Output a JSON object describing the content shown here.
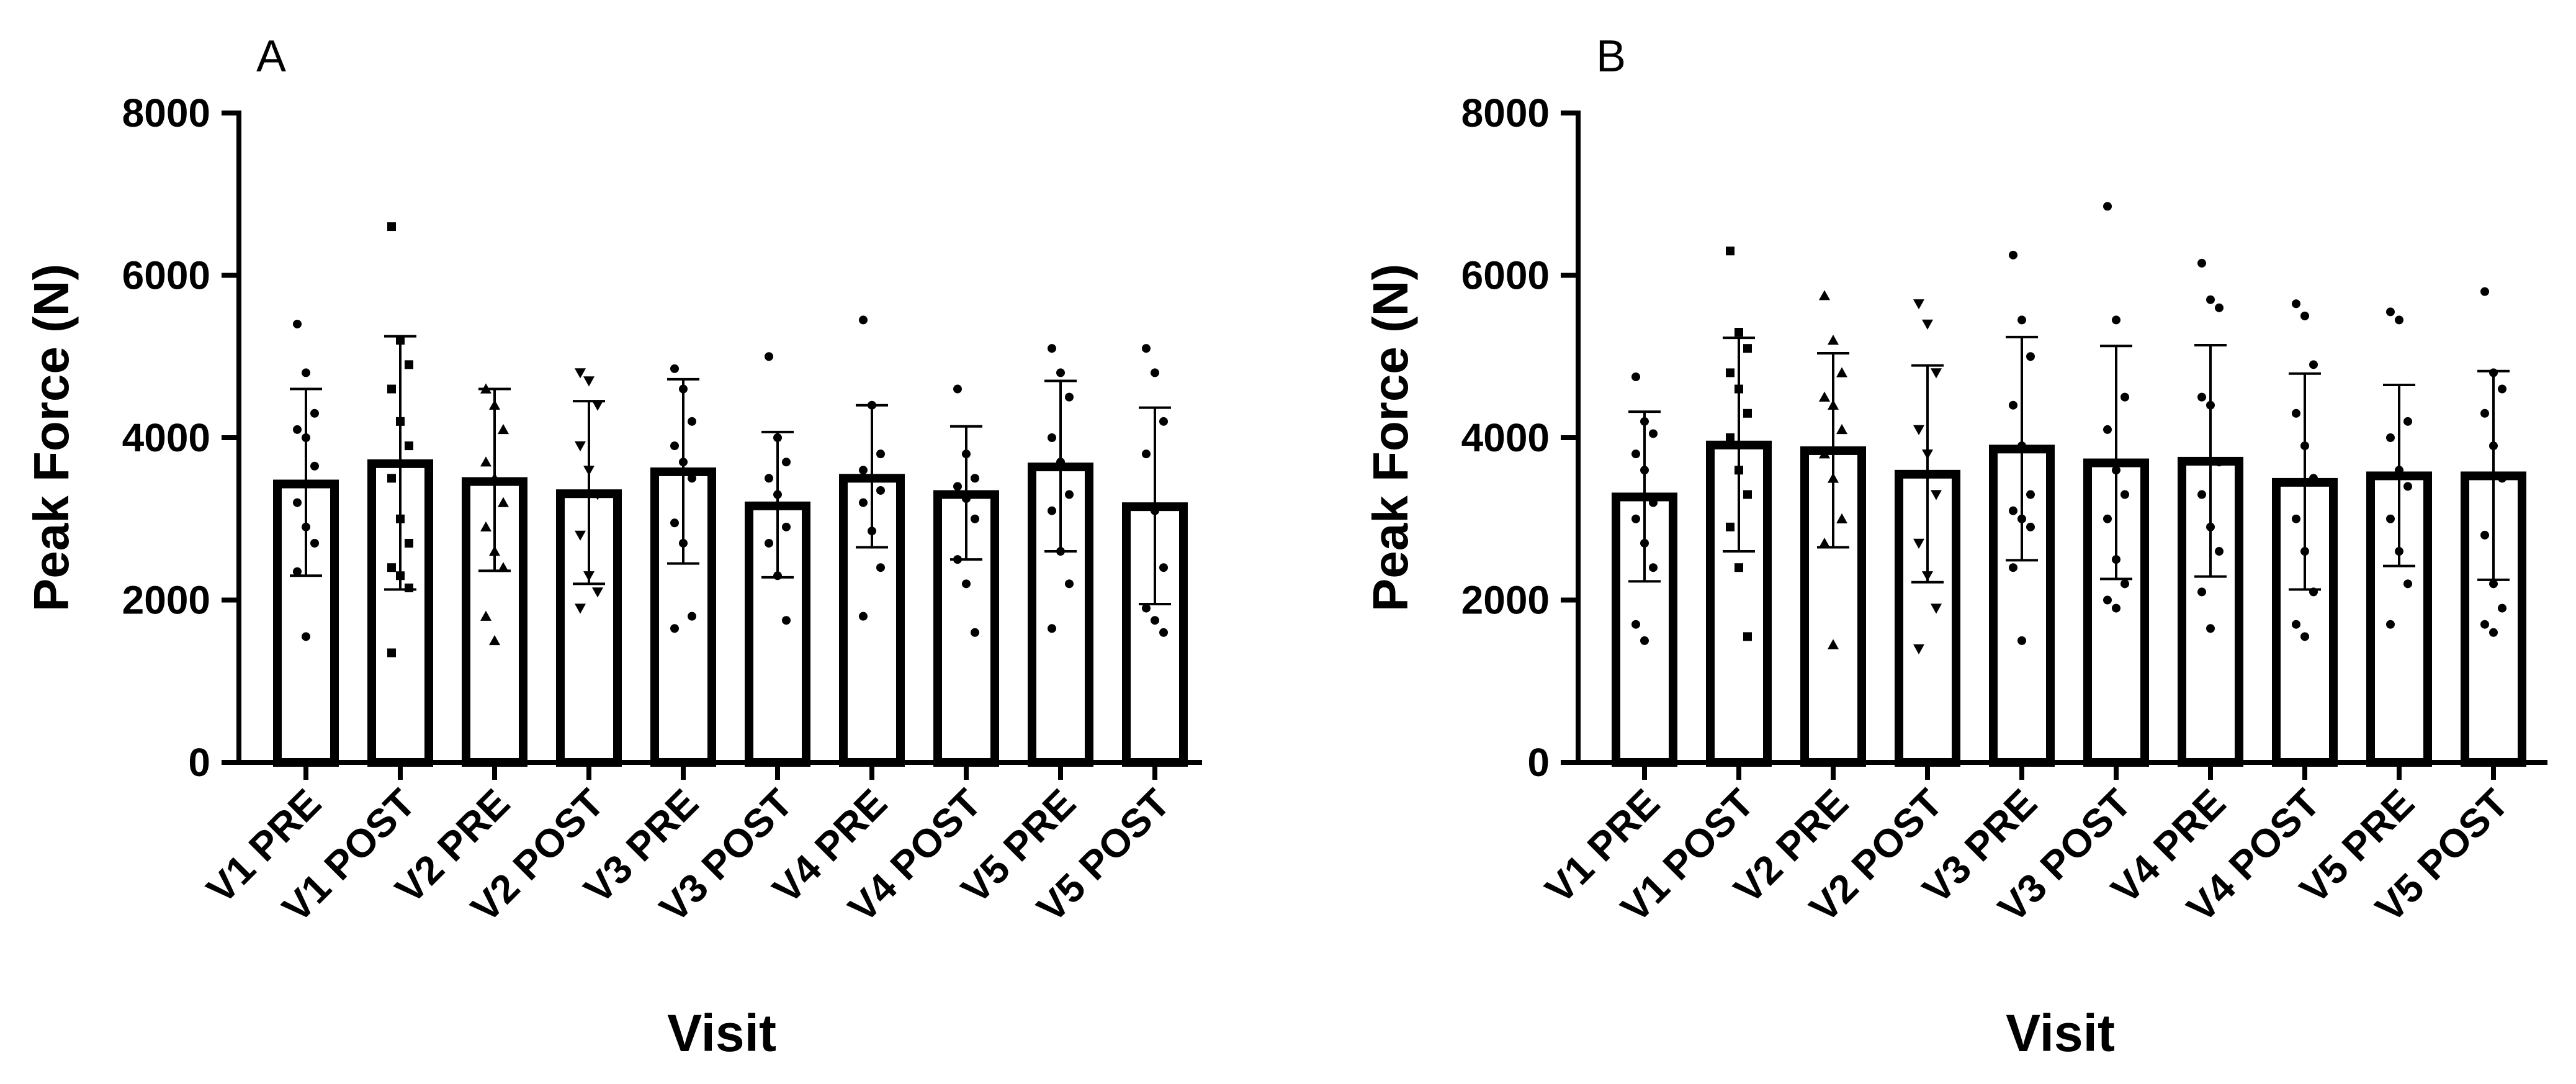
{
  "chart_data": [
    {
      "type": "bar",
      "panel": "A",
      "xlabel": "Visit",
      "ylabel": "Peak Force (N)",
      "ylim": [
        0,
        8000
      ],
      "yticks": [
        0,
        2000,
        4000,
        6000,
        8000
      ],
      "categories": [
        "V1 PRE",
        "V1 POST",
        "V2 PRE",
        "V2 POST",
        "V3 PRE",
        "V3 POST",
        "V4 PRE",
        "V4 POST",
        "V5 PRE",
        "V5 POST"
      ],
      "values": [
        3430,
        3680,
        3460,
        3310,
        3580,
        3160,
        3500,
        3300,
        3640,
        3150
      ],
      "sd_upper": [
        4600,
        5250,
        4600,
        4450,
        4720,
        4070,
        4400,
        4140,
        4700,
        4370
      ],
      "sd_lower": [
        2300,
        2130,
        2360,
        2200,
        2450,
        2280,
        2650,
        2500,
        2600,
        1950
      ],
      "markers": [
        "circle",
        "square",
        "triangle-up",
        "triangle-down",
        "circle",
        "circle",
        "circle",
        "circle",
        "circle",
        "circle"
      ],
      "points": [
        [
          5400,
          4800,
          4300,
          4100,
          4000,
          3650,
          3200,
          2900,
          2700,
          2350,
          1550
        ],
        [
          6600,
          5200,
          4900,
          4600,
          4200,
          3900,
          3500,
          3000,
          2700,
          2400,
          2300,
          2150,
          1350
        ],
        [
          4600,
          4400,
          4100,
          3700,
          3500,
          3200,
          2900,
          2600,
          2400,
          1800,
          1500
        ],
        [
          4800,
          4700,
          4400,
          3900,
          3600,
          3300,
          2800,
          2300,
          2100,
          1900
        ],
        [
          4850,
          4600,
          4200,
          3900,
          3700,
          3500,
          2950,
          2700,
          1800,
          1650
        ],
        [
          5000,
          4000,
          3700,
          3500,
          3300,
          2900,
          2700,
          2300,
          1750
        ],
        [
          5450,
          4400,
          3800,
          3600,
          3500,
          3350,
          3200,
          2850,
          2400,
          1800
        ],
        [
          4600,
          3800,
          3500,
          3400,
          3250,
          3000,
          2500,
          2200,
          1600
        ],
        [
          5100,
          4800,
          4500,
          4000,
          3700,
          3300,
          3100,
          2600,
          2200,
          1650
        ],
        [
          5100,
          4800,
          4200,
          3800,
          3100,
          2400,
          1900,
          1750,
          1600
        ]
      ]
    },
    {
      "type": "bar",
      "panel": "B",
      "xlabel": "Visit",
      "ylabel": "Peak Force (N)",
      "ylim": [
        0,
        8000
      ],
      "yticks": [
        0,
        2000,
        4000,
        6000,
        8000
      ],
      "categories": [
        "V1 PRE",
        "V1 POST",
        "V2 PRE",
        "V2 POST",
        "V3 PRE",
        "V3 POST",
        "V4 PRE",
        "V4 POST",
        "V5 PRE",
        "V5 POST"
      ],
      "values": [
        3270,
        3910,
        3840,
        3550,
        3860,
        3690,
        3710,
        3450,
        3530,
        3530
      ],
      "sd_upper": [
        4320,
        5230,
        5040,
        4890,
        5240,
        5130,
        5140,
        4790,
        4650,
        4820
      ],
      "sd_lower": [
        2230,
        2600,
        2650,
        2220,
        2490,
        2260,
        2290,
        2130,
        2420,
        2250
      ],
      "markers": [
        "circle",
        "square",
        "triangle-up",
        "triangle-down",
        "circle",
        "circle",
        "circle",
        "circle",
        "circle",
        "circle"
      ],
      "points": [
        [
          4750,
          4200,
          4050,
          3800,
          3600,
          3200,
          3000,
          2700,
          2400,
          1700,
          1500
        ],
        [
          6300,
          5300,
          5100,
          4800,
          4600,
          4300,
          4000,
          3600,
          3300,
          2900,
          2400,
          1550
        ],
        [
          5750,
          5200,
          4800,
          4500,
          4400,
          4100,
          3800,
          3500,
          3000,
          2700,
          1450
        ],
        [
          5650,
          5400,
          4800,
          4100,
          3800,
          3300,
          2700,
          2300,
          1900,
          1400
        ],
        [
          6250,
          5450,
          5000,
          4400,
          3900,
          3300,
          3100,
          3000,
          2900,
          2400,
          1500
        ],
        [
          6850,
          5450,
          4500,
          4100,
          3600,
          3300,
          3000,
          2500,
          2200,
          2000,
          1900
        ],
        [
          6150,
          5700,
          5600,
          4500,
          4400,
          3700,
          3300,
          2900,
          2600,
          2100,
          1650
        ],
        [
          5650,
          5500,
          4900,
          4300,
          3900,
          3500,
          3000,
          2600,
          2100,
          1700,
          1550
        ],
        [
          5550,
          5450,
          4200,
          4000,
          3600,
          3400,
          3000,
          2600,
          2200,
          1700
        ],
        [
          5800,
          4800,
          4600,
          4300,
          3900,
          3500,
          2800,
          2200,
          1900,
          1700,
          1600
        ]
      ]
    }
  ]
}
